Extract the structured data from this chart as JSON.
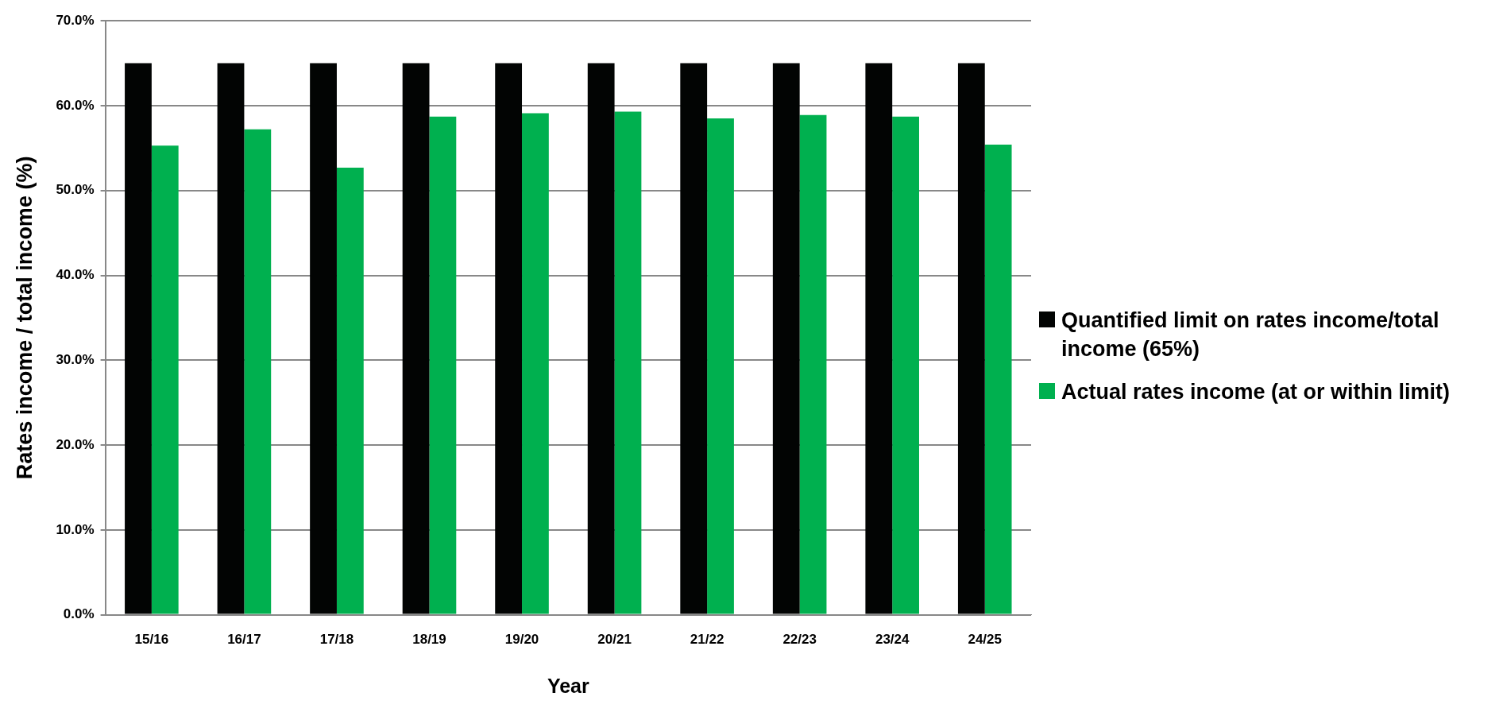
{
  "chart_data": {
    "type": "bar",
    "xlabel": "Year",
    "ylabel": "Rates income / total income (%)",
    "categories": [
      "15/16",
      "16/17",
      "17/18",
      "18/19",
      "19/20",
      "20/21",
      "21/22",
      "22/23",
      "23/24",
      "24/25"
    ],
    "series": [
      {
        "name": "Quantified limit on rates income/total income (65%)",
        "color": "#020403",
        "values": [
          65,
          65,
          65,
          65,
          65,
          65,
          65,
          65,
          65,
          65
        ]
      },
      {
        "name": "Actual rates income (at or within limit)",
        "color": "#00b04f",
        "values": [
          55.3,
          57.2,
          52.7,
          58.7,
          59.1,
          59.3,
          58.5,
          58.9,
          58.7,
          55.4
        ]
      }
    ],
    "ylim": [
      0,
      70
    ],
    "yticks": [
      {
        "value": 0,
        "label": "0.0%"
      },
      {
        "value": 10,
        "label": "10.0%"
      },
      {
        "value": 20,
        "label": "20.0%"
      },
      {
        "value": 30,
        "label": "30.0%"
      },
      {
        "value": 40,
        "label": "40.0%"
      },
      {
        "value": 50,
        "label": "50.0%"
      },
      {
        "value": 60,
        "label": "60.0%"
      },
      {
        "value": 70,
        "label": "70.0%"
      }
    ],
    "grid": "y",
    "legend": "right"
  }
}
